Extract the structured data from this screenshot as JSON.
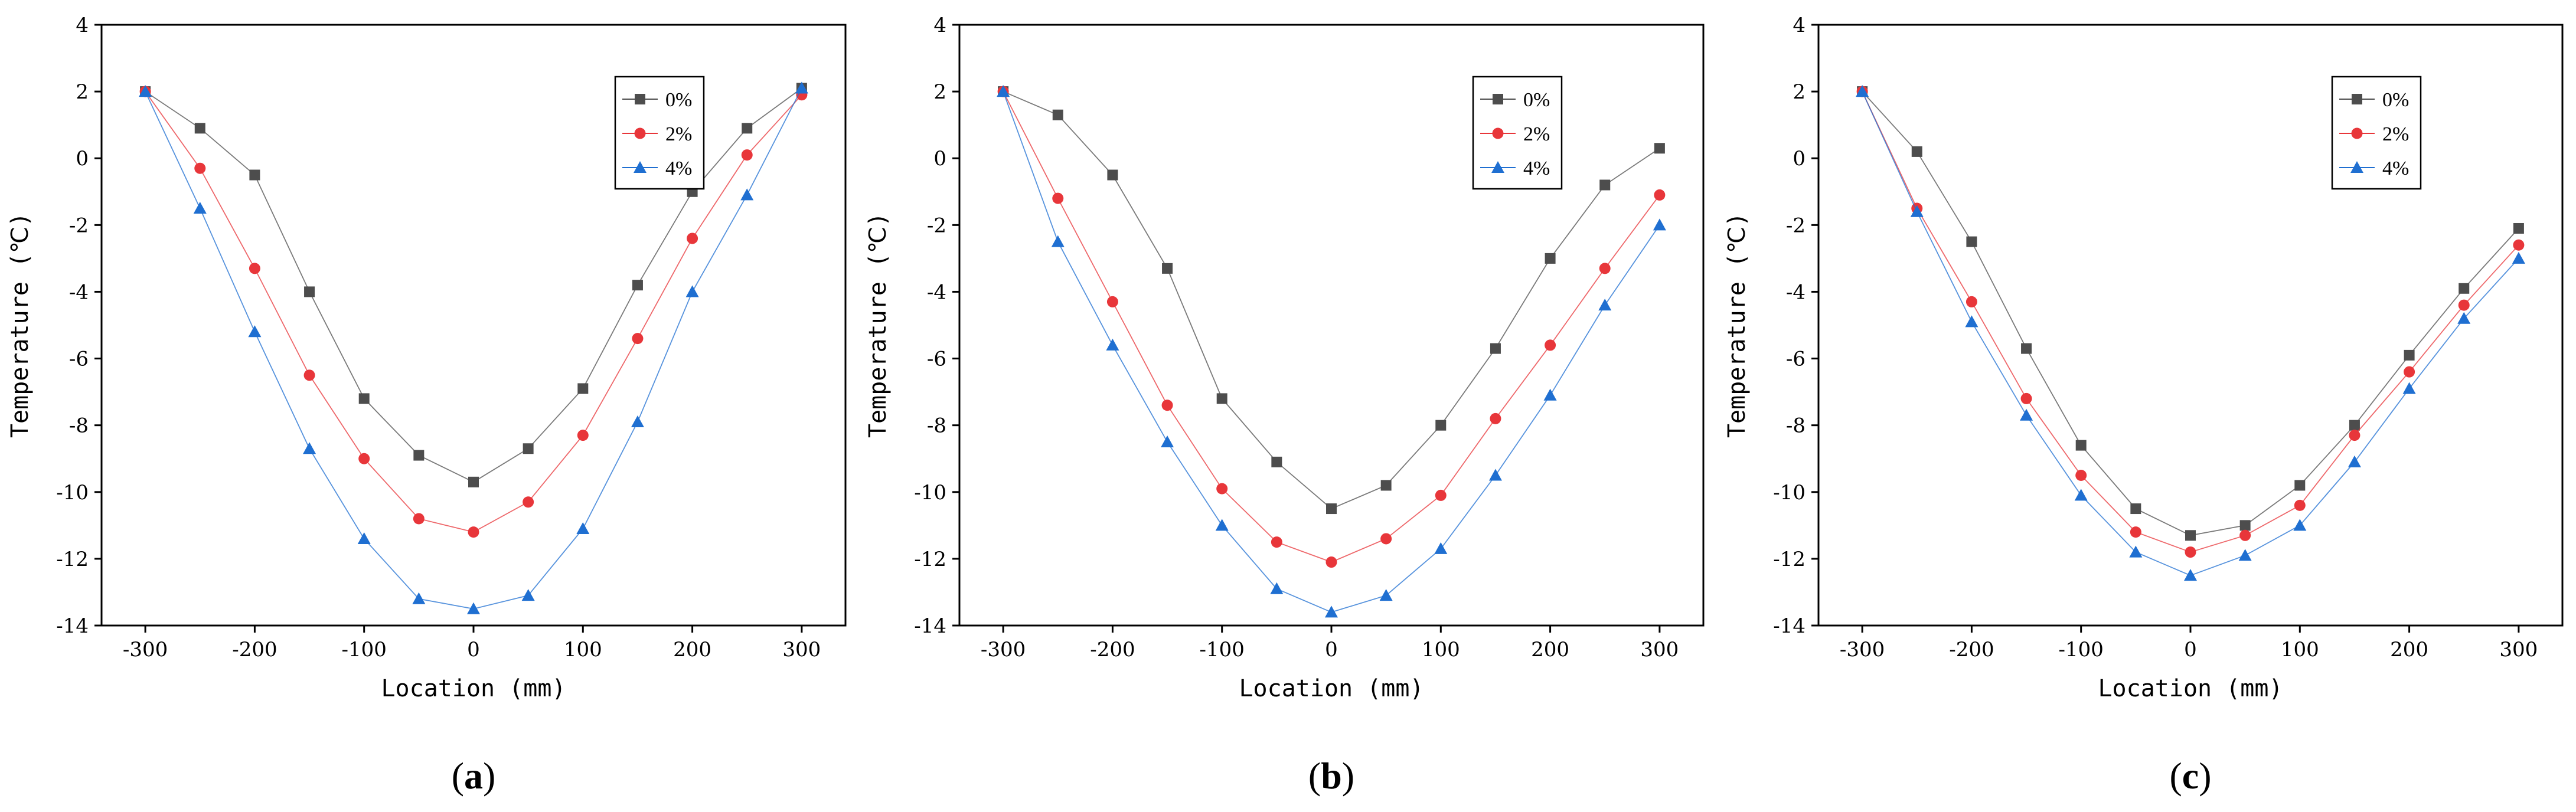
{
  "chart_data": [
    {
      "type": "line",
      "panel_label": "a",
      "xlabel": "Location (mm)",
      "ylabel": "Temperature (℃)",
      "xlim": [
        -340,
        340
      ],
      "ylim": [
        -14,
        4
      ],
      "xticks": [
        -300,
        -200,
        -100,
        0,
        100,
        200,
        300
      ],
      "yticks": [
        -14,
        -12,
        -10,
        -8,
        -6,
        -4,
        -2,
        0,
        2,
        4
      ],
      "legend_position": "top-right",
      "x": [
        -300,
        -250,
        -200,
        -150,
        -100,
        -50,
        0,
        50,
        100,
        150,
        200,
        250,
        300
      ],
      "series": [
        {
          "name": "0%",
          "color": "#4d4d4d",
          "marker": "square",
          "values": [
            2.0,
            0.9,
            -0.5,
            -4.0,
            -7.2,
            -8.9,
            -9.7,
            -8.7,
            -6.9,
            -3.8,
            -1.0,
            0.9,
            2.1
          ]
        },
        {
          "name": "2%",
          "color": "#e8363a",
          "marker": "circle",
          "values": [
            2.0,
            -0.3,
            -3.3,
            -6.5,
            -9.0,
            -10.8,
            -11.2,
            -10.3,
            -8.3,
            -5.4,
            -2.4,
            0.1,
            1.9
          ]
        },
        {
          "name": "4%",
          "color": "#1f6fd1",
          "marker": "triangle",
          "values": [
            2.0,
            -1.5,
            -5.2,
            -8.7,
            -11.4,
            -13.2,
            -13.5,
            -13.1,
            -11.1,
            -7.9,
            -4.0,
            -1.1,
            2.1
          ]
        }
      ]
    },
    {
      "type": "line",
      "panel_label": "b",
      "xlabel": "Location (mm)",
      "ylabel": "Temperature (℃)",
      "xlim": [
        -340,
        340
      ],
      "ylim": [
        -14,
        4
      ],
      "xticks": [
        -300,
        -200,
        -100,
        0,
        100,
        200,
        300
      ],
      "yticks": [
        -14,
        -12,
        -10,
        -8,
        -6,
        -4,
        -2,
        0,
        2,
        4
      ],
      "legend_position": "top-right",
      "x": [
        -300,
        -250,
        -200,
        -150,
        -100,
        -50,
        0,
        50,
        100,
        150,
        200,
        250,
        300
      ],
      "series": [
        {
          "name": "0%",
          "color": "#4d4d4d",
          "marker": "square",
          "values": [
            2.0,
            1.3,
            -0.5,
            -3.3,
            -7.2,
            -9.1,
            -10.5,
            -9.8,
            -8.0,
            -5.7,
            -3.0,
            -0.8,
            0.3
          ]
        },
        {
          "name": "2%",
          "color": "#e8363a",
          "marker": "circle",
          "values": [
            2.0,
            -1.2,
            -4.3,
            -7.4,
            -9.9,
            -11.5,
            -12.1,
            -11.4,
            -10.1,
            -7.8,
            -5.6,
            -3.3,
            -1.1
          ]
        },
        {
          "name": "4%",
          "color": "#1f6fd1",
          "marker": "triangle",
          "values": [
            2.0,
            -2.5,
            -5.6,
            -8.5,
            -11.0,
            -12.9,
            -13.6,
            -13.1,
            -11.7,
            -9.5,
            -7.1,
            -4.4,
            -2.0
          ]
        }
      ]
    },
    {
      "type": "line",
      "panel_label": "c",
      "xlabel": "Location (mm)",
      "ylabel": "Temperature (℃)",
      "xlim": [
        -340,
        340
      ],
      "ylim": [
        -14,
        4
      ],
      "xticks": [
        -300,
        -200,
        -100,
        0,
        100,
        200,
        300
      ],
      "yticks": [
        -14,
        -12,
        -10,
        -8,
        -6,
        -4,
        -2,
        0,
        2,
        4
      ],
      "legend_position": "top-right",
      "x": [
        -300,
        -250,
        -200,
        -150,
        -100,
        -50,
        0,
        50,
        100,
        150,
        200,
        250,
        300
      ],
      "series": [
        {
          "name": "0%",
          "color": "#4d4d4d",
          "marker": "square",
          "values": [
            2.0,
            0.2,
            -2.5,
            -5.7,
            -8.6,
            -10.5,
            -11.3,
            -11.0,
            -9.8,
            -8.0,
            -5.9,
            -3.9,
            -2.1
          ]
        },
        {
          "name": "2%",
          "color": "#e8363a",
          "marker": "circle",
          "values": [
            2.0,
            -1.5,
            -4.3,
            -7.2,
            -9.5,
            -11.2,
            -11.8,
            -11.3,
            -10.4,
            -8.3,
            -6.4,
            -4.4,
            -2.6
          ]
        },
        {
          "name": "4%",
          "color": "#1f6fd1",
          "marker": "triangle",
          "values": [
            2.0,
            -1.6,
            -4.9,
            -7.7,
            -10.1,
            -11.8,
            -12.5,
            -11.9,
            -11.0,
            -9.1,
            -6.9,
            -4.8,
            -3.0
          ]
        }
      ]
    }
  ]
}
